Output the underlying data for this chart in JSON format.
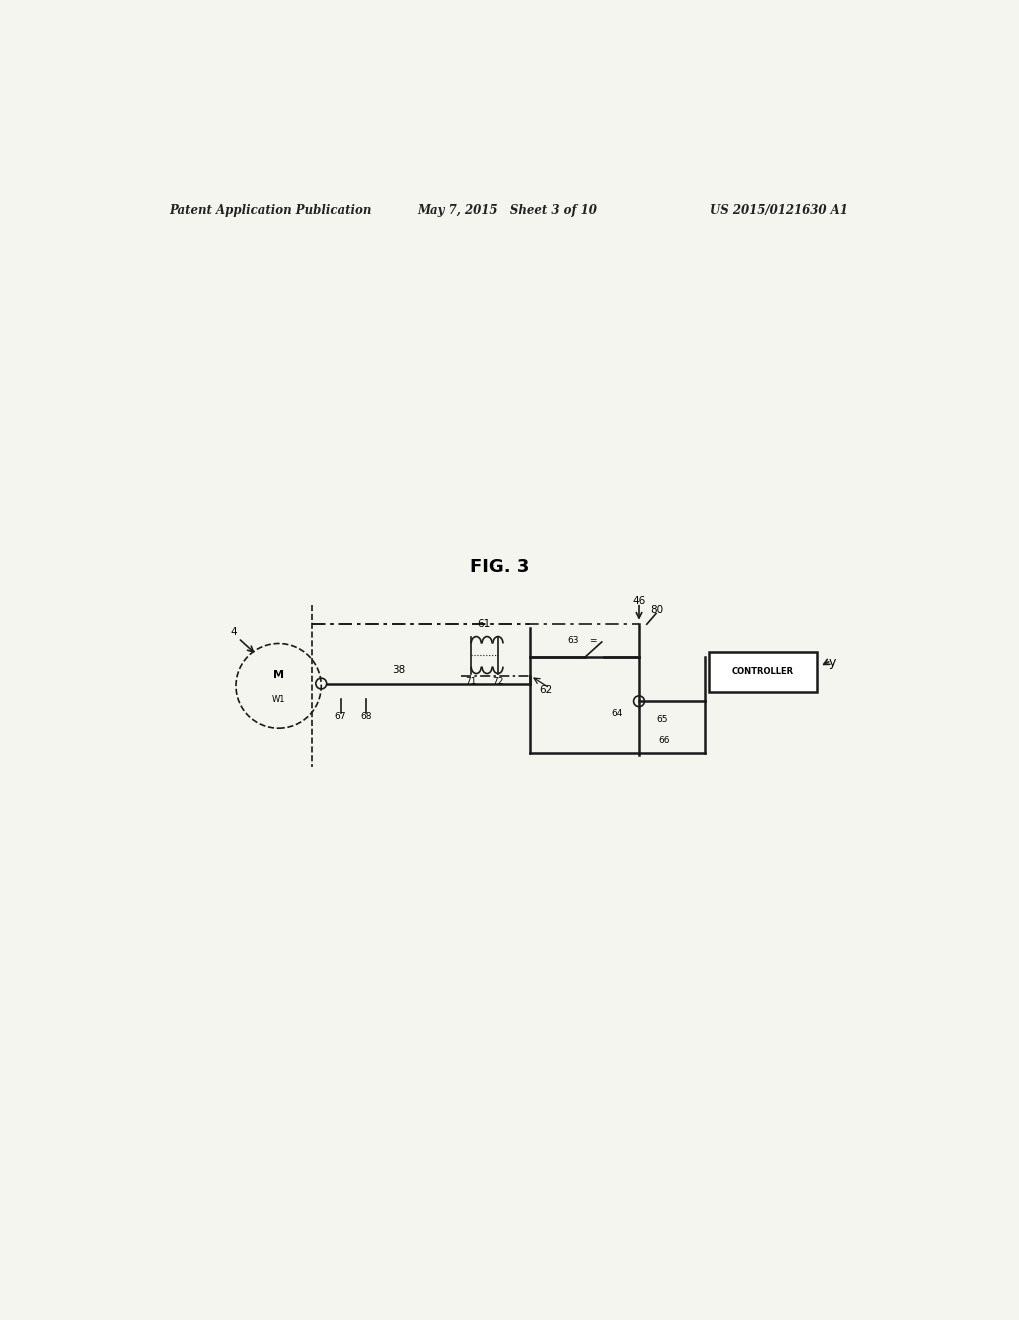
{
  "bg_color": "#f5f5f0",
  "header_left": "Patent Application Publication",
  "header_mid": "May 7, 2015   Sheet 3 of 10",
  "header_right": "US 2015/0121630 A1",
  "fig_title": "FIG. 3",
  "label_4": "4",
  "label_M": "M",
  "label_W1": "W1",
  "label_38": "38",
  "label_67": "67",
  "label_68": "68",
  "label_61": "61",
  "label_71": "71",
  "label_72": "72",
  "label_62": "62",
  "label_46": "46",
  "label_63": "63",
  "label_64": "64",
  "label_65": "65",
  "label_66": "66",
  "label_80": "80",
  "label_y": "y",
  "controller_text": "CONTROLLER"
}
